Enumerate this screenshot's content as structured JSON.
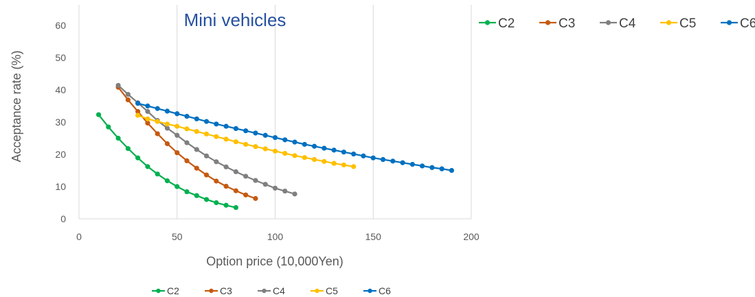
{
  "chart_data": {
    "type": "line",
    "title": "Mini vehicles",
    "xlabel": "Option price (10,000Yen)",
    "ylabel": "Acceptance rate (%)",
    "xlim": [
      0,
      200
    ],
    "ylim": [
      0,
      60
    ],
    "x_ticks": [
      "0",
      "50",
      "100",
      "150",
      "200"
    ],
    "y_ticks": [
      "0",
      "10",
      "20",
      "30",
      "40",
      "50",
      "60"
    ],
    "grid": "vertical gridlines",
    "legend": [
      "top-right",
      "bottom"
    ],
    "series": [
      {
        "name": "C2",
        "color": "#00b050",
        "x": [
          10,
          15,
          20,
          25,
          30,
          35,
          40,
          45,
          50,
          55,
          60,
          65,
          70,
          75,
          80
        ],
        "y": [
          32.3,
          28.5,
          25.0,
          21.8,
          18.9,
          16.2,
          13.9,
          11.8,
          10.0,
          8.4,
          7.2,
          6.0,
          5.0,
          4.2,
          3.5
        ]
      },
      {
        "name": "C3",
        "color": "#c55a11",
        "x": [
          20,
          25,
          30,
          35,
          40,
          45,
          50,
          55,
          60,
          65,
          70,
          75,
          80,
          85,
          90
        ],
        "y": [
          40.8,
          36.9,
          33.3,
          29.7,
          26.4,
          23.3,
          20.5,
          18.0,
          15.7,
          13.6,
          11.7,
          10.1,
          8.7,
          7.4,
          6.3
        ]
      },
      {
        "name": "C4",
        "color": "#7f7f7f",
        "x": [
          20,
          25,
          30,
          35,
          40,
          45,
          50,
          55,
          60,
          65,
          70,
          75,
          80,
          85,
          90,
          95,
          100,
          105,
          110
        ],
        "y": [
          41.4,
          38.6,
          36.0,
          33.3,
          30.5,
          28.1,
          25.9,
          23.6,
          21.5,
          19.5,
          17.7,
          16.1,
          14.6,
          13.2,
          11.9,
          10.7,
          9.5,
          8.6,
          7.7
        ]
      },
      {
        "name": "C5",
        "color": "#ffc000",
        "x": [
          30,
          35,
          40,
          45,
          50,
          55,
          60,
          65,
          70,
          75,
          80,
          85,
          90,
          95,
          100,
          105,
          110,
          115,
          120,
          125,
          130,
          135,
          140
        ],
        "y": [
          32.1,
          31.0,
          30.2,
          29.4,
          28.7,
          27.9,
          27.1,
          26.3,
          25.5,
          24.7,
          23.9,
          23.1,
          22.4,
          21.7,
          21.0,
          20.3,
          19.6,
          19.0,
          18.4,
          17.8,
          17.2,
          16.7,
          16.2
        ]
      },
      {
        "name": "C6",
        "color": "#0070c0",
        "x": [
          30,
          35,
          40,
          45,
          50,
          55,
          60,
          65,
          70,
          75,
          80,
          85,
          90,
          95,
          100,
          105,
          110,
          115,
          120,
          125,
          130,
          135,
          140,
          145,
          150,
          155,
          160,
          165,
          170,
          175,
          180,
          185,
          190
        ],
        "y": [
          35.8,
          35.0,
          34.2,
          33.4,
          32.6,
          31.8,
          31.0,
          30.2,
          29.4,
          28.7,
          28.0,
          27.3,
          26.6,
          25.9,
          25.2,
          24.5,
          23.8,
          23.1,
          22.5,
          21.9,
          21.3,
          20.7,
          20.1,
          19.5,
          18.9,
          18.4,
          17.9,
          17.4,
          16.9,
          16.4,
          15.9,
          15.5,
          15.0
        ]
      }
    ]
  }
}
